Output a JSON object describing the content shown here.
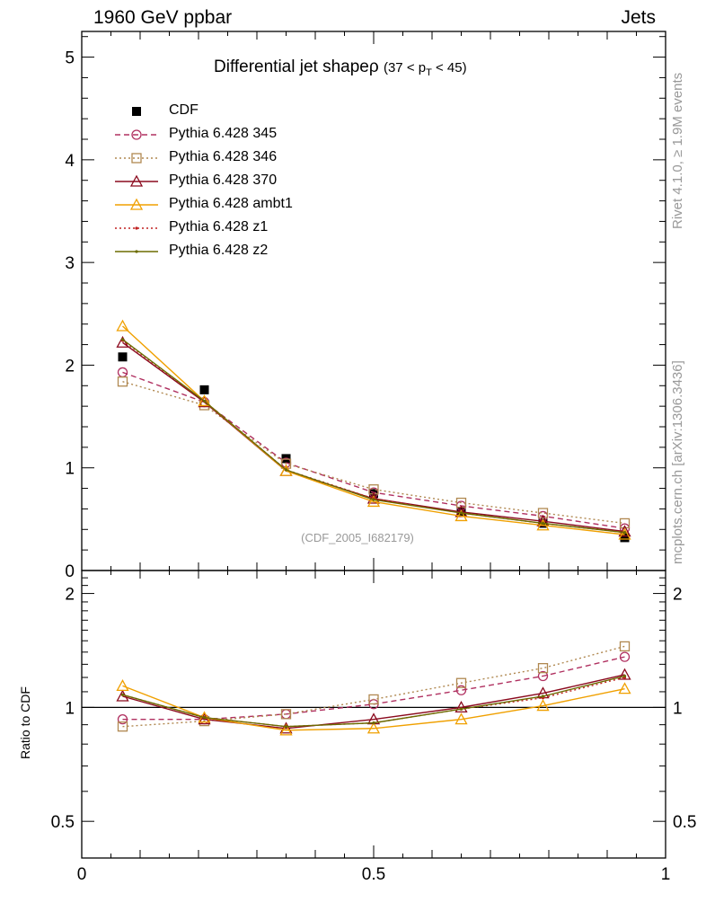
{
  "header": {
    "left": "1960 GeV ppbar",
    "right": "Jets"
  },
  "side_labels": {
    "rivet": "Rivet 4.1.0, ≥ 1.9M events",
    "mcplots": "mcplots.cern.ch [arXiv:1306.3436]"
  },
  "title": {
    "main": "Differential jet shapeρ",
    "range_open": "(37 < p",
    "range_sub": "T",
    "range_close": " < 45)"
  },
  "watermark": "(CDF_2005_I682179)",
  "ratio_ylabel": "Ratio to CDF",
  "legend": [
    {
      "label": "CDF"
    },
    {
      "label": "Pythia 6.428 345"
    },
    {
      "label": "Pythia 6.428 346"
    },
    {
      "label": "Pythia 6.428 370"
    },
    {
      "label": "Pythia 6.428 ambt1"
    },
    {
      "label": "Pythia 6.428 z1"
    },
    {
      "label": "Pythia 6.428 z2"
    }
  ],
  "chart_data": [
    {
      "type": "line",
      "panel": "main",
      "title": "Differential jet shape ρ (37 < pT < 45)",
      "xlabel": "",
      "ylabel": "",
      "xlim": [
        0,
        1
      ],
      "ylim": [
        0,
        5.25
      ],
      "x_ticks": [
        0,
        0.5,
        1
      ],
      "x_tick_labels": [
        "0",
        "0.5",
        "1"
      ],
      "y_ticks": [
        0,
        1,
        2,
        3,
        4,
        5
      ],
      "y_tick_labels": [
        "0",
        "1",
        "2",
        "3",
        "4",
        "5"
      ],
      "x": [
        0.07,
        0.21,
        0.35,
        0.5,
        0.65,
        0.79,
        0.93
      ],
      "series": [
        {
          "name": "CDF",
          "color": "#000000",
          "style": "points",
          "marker": "square-filled",
          "values": [
            2.08,
            1.76,
            1.09,
            0.75,
            0.57,
            0.46,
            0.32
          ]
        },
        {
          "name": "Pythia 6.428 345",
          "color": "#b03060",
          "style": "dashed",
          "marker": "circle",
          "values": [
            1.93,
            1.64,
            1.05,
            0.76,
            0.63,
            0.53,
            0.41
          ]
        },
        {
          "name": "Pythia 6.428 346",
          "color": "#b08850",
          "style": "dotted",
          "marker": "square",
          "values": [
            1.84,
            1.61,
            1.04,
            0.79,
            0.66,
            0.56,
            0.46
          ]
        },
        {
          "name": "Pythia 6.428 370",
          "color": "#8b0a1e",
          "style": "solid",
          "marker": "triangle",
          "values": [
            2.22,
            1.64,
            0.97,
            0.7,
            0.57,
            0.48,
            0.38
          ]
        },
        {
          "name": "Pythia 6.428 ambt1",
          "color": "#f0a000",
          "style": "solid",
          "marker": "triangle",
          "values": [
            2.38,
            1.65,
            0.97,
            0.67,
            0.53,
            0.44,
            0.35
          ]
        },
        {
          "name": "Pythia 6.428 z1",
          "color": "#c02020",
          "style": "dotted",
          "marker": "dot",
          "values": [
            2.24,
            1.65,
            0.98,
            0.7,
            0.56,
            0.46,
            0.37
          ]
        },
        {
          "name": "Pythia 6.428 z2",
          "color": "#6b6b00",
          "style": "solid",
          "marker": "dot",
          "values": [
            2.25,
            1.65,
            0.98,
            0.69,
            0.56,
            0.46,
            0.37
          ]
        }
      ]
    },
    {
      "type": "line",
      "panel": "ratio",
      "title": "",
      "xlabel": "",
      "ylabel": "Ratio to CDF",
      "xlim": [
        0,
        1
      ],
      "ylim": [
        0.4,
        2.3
      ],
      "y_scale": "log",
      "x_ticks": [
        0,
        0.5,
        1
      ],
      "x_tick_labels": [
        "0",
        "0.5",
        "1"
      ],
      "y_ticks": [
        0.5,
        1,
        2
      ],
      "y_tick_labels": [
        "0.5",
        "1",
        "2"
      ],
      "reference_line": 1,
      "x": [
        0.07,
        0.21,
        0.35,
        0.5,
        0.65,
        0.79,
        0.93
      ],
      "series": [
        {
          "name": "Pythia 6.428 345",
          "color": "#b03060",
          "style": "dashed",
          "marker": "circle",
          "values": [
            0.93,
            0.93,
            0.96,
            1.02,
            1.11,
            1.21,
            1.36
          ]
        },
        {
          "name": "Pythia 6.428 346",
          "color": "#b08850",
          "style": "dotted",
          "marker": "square",
          "values": [
            0.89,
            0.92,
            0.96,
            1.05,
            1.16,
            1.27,
            1.45
          ]
        },
        {
          "name": "Pythia 6.428 370",
          "color": "#8b0a1e",
          "style": "solid",
          "marker": "triangle",
          "values": [
            1.07,
            0.93,
            0.88,
            0.93,
            1.0,
            1.09,
            1.22
          ]
        },
        {
          "name": "Pythia 6.428 ambt1",
          "color": "#f0a000",
          "style": "solid",
          "marker": "triangle",
          "values": [
            1.14,
            0.94,
            0.87,
            0.88,
            0.93,
            1.01,
            1.12
          ]
        },
        {
          "name": "Pythia 6.428 z1",
          "color": "#c02020",
          "style": "dotted",
          "marker": "dot",
          "values": [
            1.08,
            0.94,
            0.89,
            0.91,
            0.99,
            1.06,
            1.2
          ]
        },
        {
          "name": "Pythia 6.428 z2",
          "color": "#6b6b00",
          "style": "solid",
          "marker": "dot",
          "values": [
            1.08,
            0.94,
            0.89,
            0.91,
            0.99,
            1.07,
            1.21
          ]
        }
      ]
    }
  ]
}
